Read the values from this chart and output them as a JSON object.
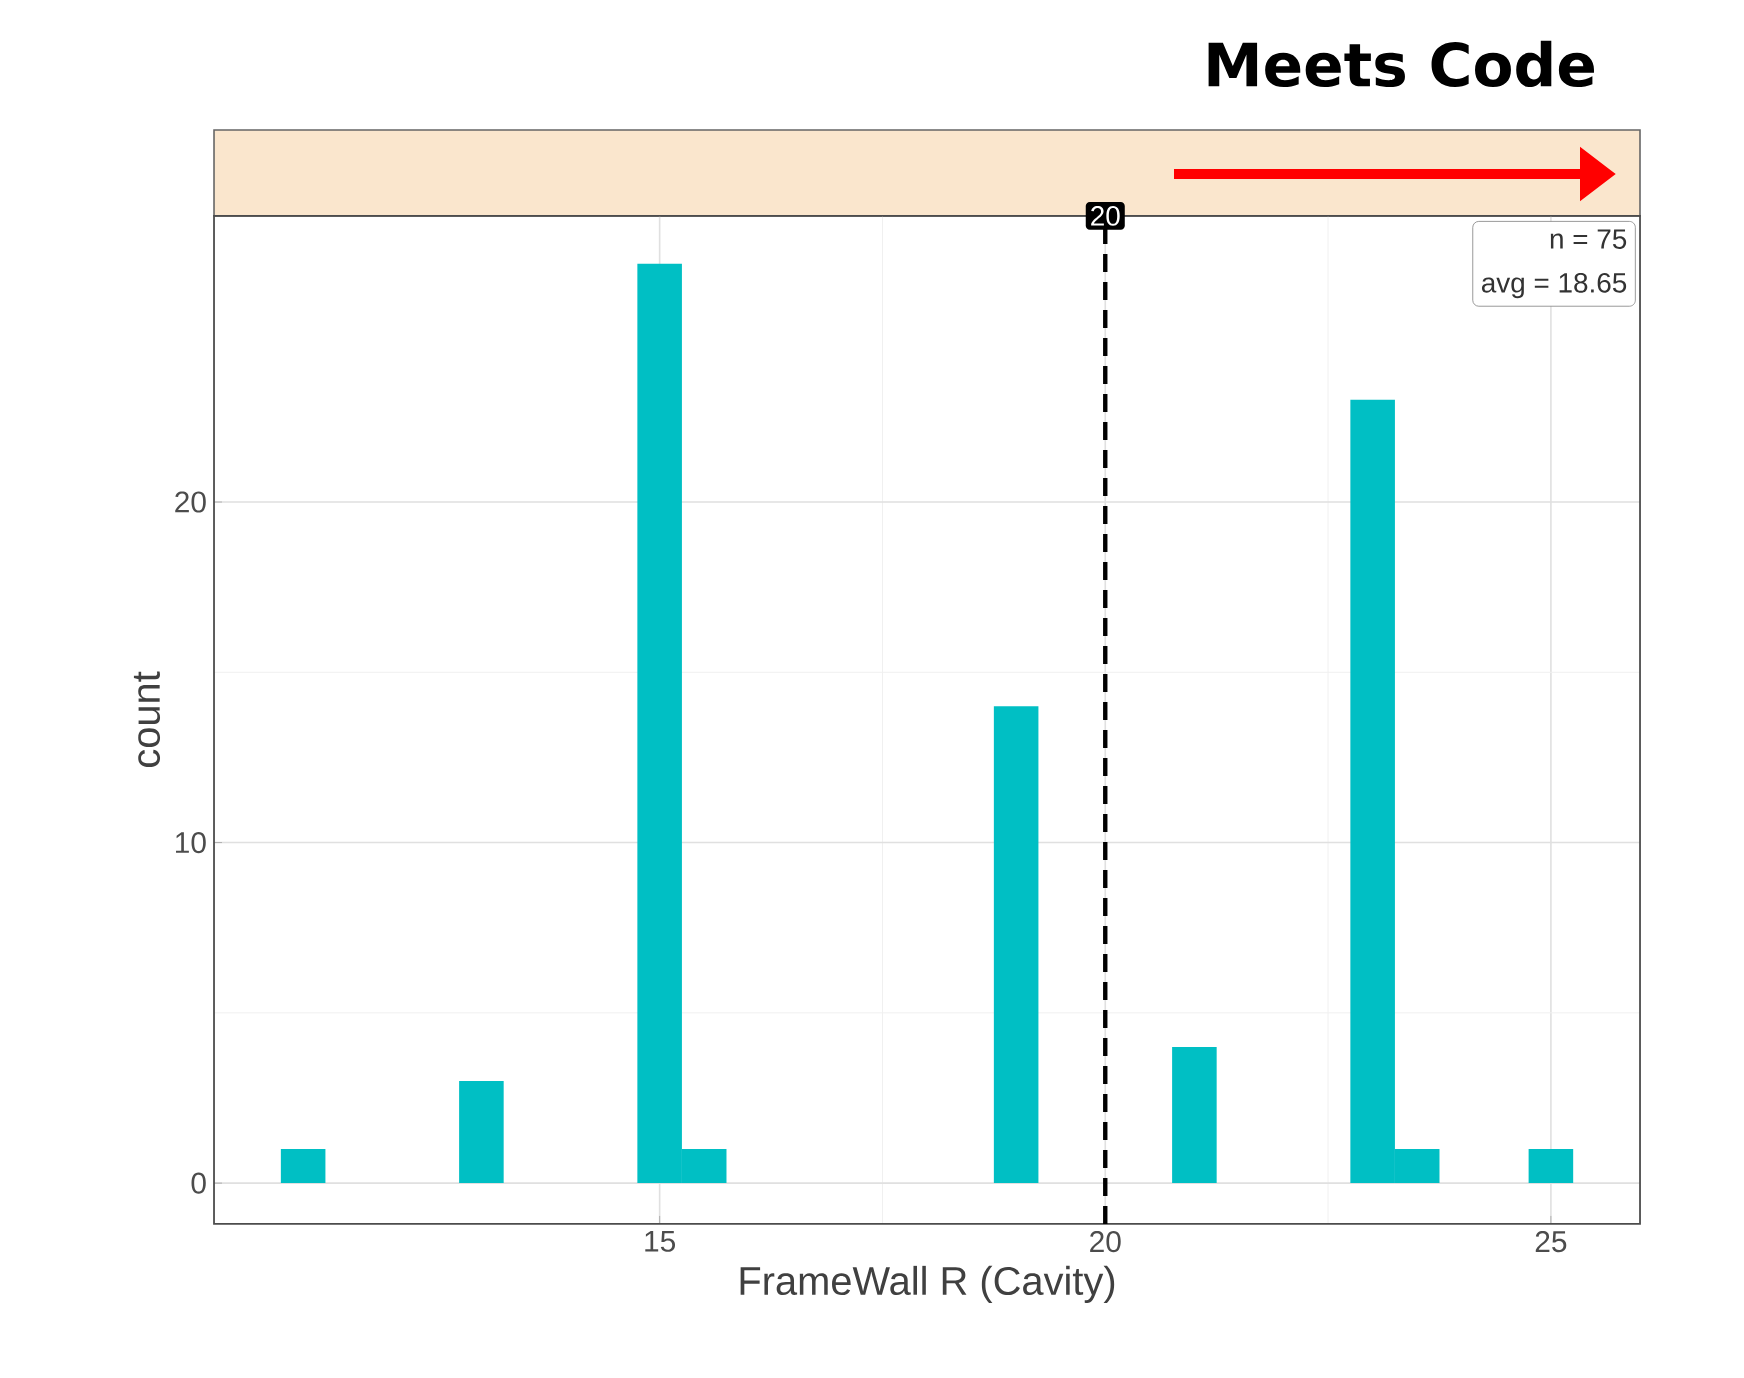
{
  "chart_data": {
    "type": "histogram",
    "title": "Meets Code",
    "xlabel": "FrameWall R (Cavity)",
    "ylabel": "count",
    "bins": [
      10.75,
      11.25,
      11.75,
      12.25,
      12.75,
      13.25,
      13.75,
      14.25,
      14.75,
      15.25,
      15.75,
      16.25,
      16.75,
      17.25,
      17.75,
      18.25,
      18.75,
      19.25,
      19.75,
      20.25,
      20.75,
      21.25,
      21.75,
      22.25,
      22.75,
      23.25,
      23.75,
      24.25,
      24.75,
      25.25
    ],
    "values": [
      1,
      0,
      0,
      0,
      3,
      0,
      0,
      0,
      27,
      1,
      0,
      0,
      0,
      0,
      0,
      0,
      14,
      0,
      0,
      0,
      4,
      0,
      0,
      0,
      23,
      1,
      0,
      0,
      1
    ],
    "color": "#00bfc4",
    "xlim": [
      10,
      26
    ],
    "ylim": [
      -1.2,
      28.4
    ],
    "xticks": [
      15,
      20,
      25
    ],
    "yticks": [
      0,
      10,
      20
    ],
    "grid": true,
    "ref_lines": [
      {
        "axis": "x",
        "value": 20,
        "label": "20",
        "line_style": "dashed",
        "color": "#000000"
      }
    ],
    "annotations": [
      "n = 75",
      "avg = 18.65"
    ]
  }
}
